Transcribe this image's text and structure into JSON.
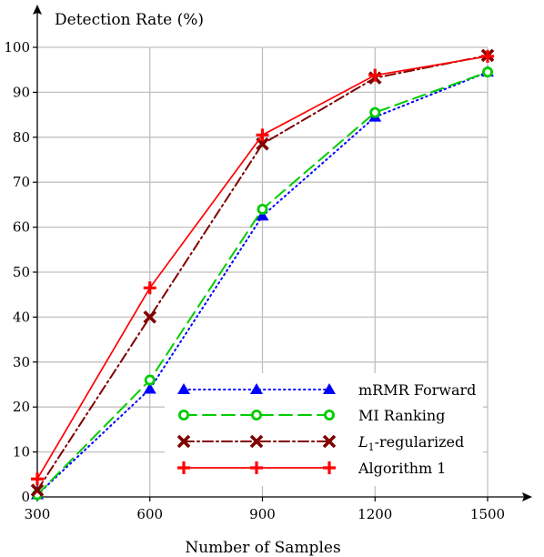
{
  "chart_data": {
    "type": "line",
    "ylabel": "Detection Rate (%)",
    "xlabel": "Number of Samples",
    "x": [
      300,
      600,
      900,
      1200,
      1500
    ],
    "xlim": [
      300,
      1500
    ],
    "ylim": [
      0,
      100
    ],
    "xticks": [
      300,
      600,
      900,
      1200,
      1500
    ],
    "yticks": [
      0,
      10,
      20,
      30,
      40,
      50,
      60,
      70,
      80,
      90,
      100
    ],
    "grid": true,
    "legend_position": "bottom-right",
    "series": [
      {
        "name": "mRMR Forward",
        "values": [
          0.5,
          24,
          62.5,
          84.5,
          94.5
        ],
        "color": "#0000ff",
        "marker": "triangle",
        "line": "dotted"
      },
      {
        "name": "MI Ranking",
        "values": [
          0.5,
          26,
          64,
          85.5,
          94.5
        ],
        "color": "#00cc00",
        "marker": "circle",
        "line": "dashed"
      },
      {
        "name": "L1-regularized",
        "values": [
          1.5,
          40,
          78.5,
          93.2,
          98.2
        ],
        "color": "#800000",
        "marker": "x",
        "line": "dashdot"
      },
      {
        "name": "Algorithm 1",
        "values": [
          4,
          46.5,
          80.5,
          93.8,
          98
        ],
        "color": "#ff0000",
        "marker": "plus",
        "line": "solid"
      }
    ]
  }
}
